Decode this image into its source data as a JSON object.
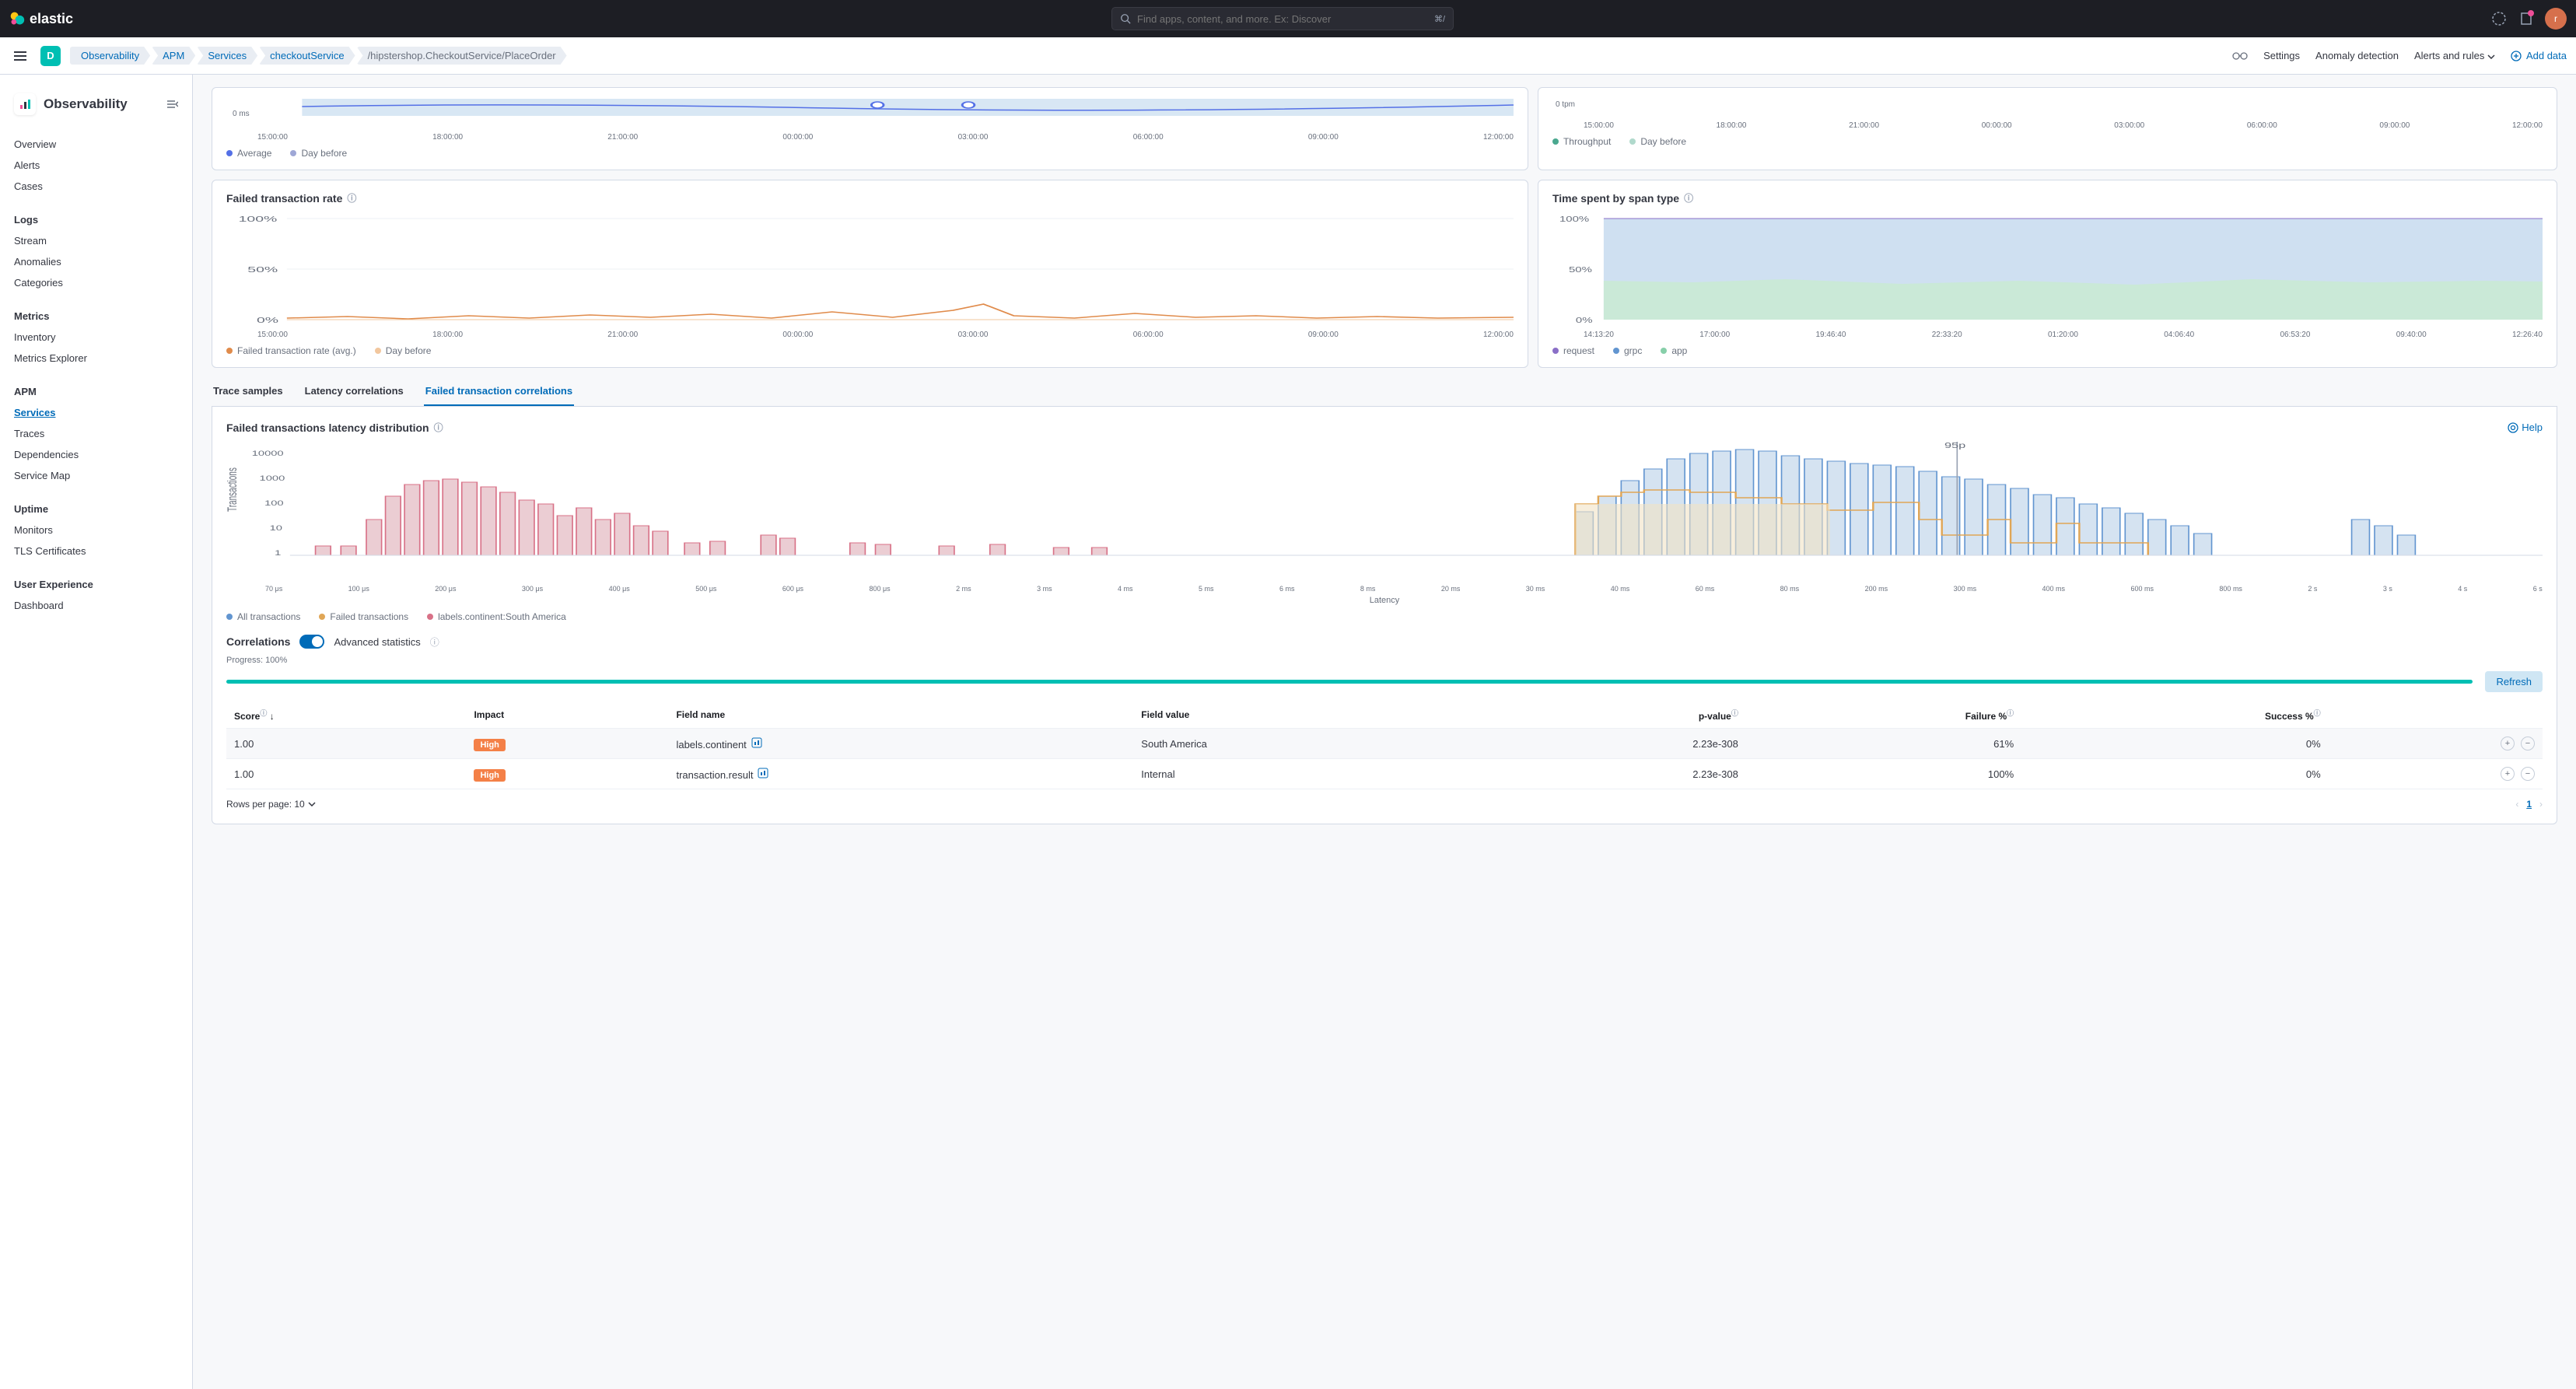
{
  "topbar": {
    "brand": "elastic",
    "search_placeholder": "Find apps, content, and more. Ex: Discover",
    "search_shortcut": "⌘/",
    "avatar_initial": "r"
  },
  "subheader": {
    "space_letter": "D",
    "breadcrumbs": [
      "Observability",
      "APM",
      "Services",
      "checkoutService",
      "/hipstershop.CheckoutService/PlaceOrder"
    ],
    "links": {
      "settings": "Settings",
      "anomaly": "Anomaly detection",
      "alerts": "Alerts and rules",
      "add_data": "Add data"
    }
  },
  "sidebar": {
    "title": "Observability",
    "groups": [
      {
        "title": null,
        "items": [
          "Overview",
          "Alerts",
          "Cases"
        ]
      },
      {
        "title": "Logs",
        "items": [
          "Stream",
          "Anomalies",
          "Categories"
        ]
      },
      {
        "title": "Metrics",
        "items": [
          "Inventory",
          "Metrics Explorer"
        ]
      },
      {
        "title": "APM",
        "items": [
          "Services",
          "Traces",
          "Dependencies",
          "Service Map"
        ],
        "active": "Services"
      },
      {
        "title": "Uptime",
        "items": [
          "Monitors",
          "TLS Certificates"
        ]
      },
      {
        "title": "User Experience",
        "items": [
          "Dashboard"
        ]
      }
    ]
  },
  "top_charts": {
    "left": {
      "y0": "0 ms",
      "xticks": [
        "15:00:00",
        "18:00:00",
        "21:00:00",
        "00:00:00",
        "03:00:00",
        "06:00:00",
        "09:00:00",
        "12:00:00"
      ],
      "legend": [
        {
          "label": "Average",
          "color": "#5470e6"
        },
        {
          "label": "Day before",
          "color": "#9ea7d6"
        }
      ],
      "fill_color": "#d8e7f4"
    },
    "right": {
      "y0": "0 tpm",
      "xticks": [
        "15:00:00",
        "18:00:00",
        "21:00:00",
        "00:00:00",
        "03:00:00",
        "06:00:00",
        "09:00:00",
        "12:00:00"
      ],
      "legend": [
        {
          "label": "Throughput",
          "color": "#4aa88f"
        },
        {
          "label": "Day before",
          "color": "#b0d9cc"
        }
      ]
    }
  },
  "failed_rate": {
    "title": "Failed transaction rate",
    "yticks": [
      "100%",
      "50%",
      "0%"
    ],
    "xticks": [
      "15:00:00",
      "18:00:00",
      "21:00:00",
      "00:00:00",
      "03:00:00",
      "06:00:00",
      "09:00:00",
      "12:00:00"
    ],
    "legend": [
      {
        "label": "Failed transaction rate (avg.)",
        "color": "#e08b4b"
      },
      {
        "label": "Day before",
        "color": "#f2c79e"
      }
    ],
    "line_color": "#e08b4b",
    "grid_color": "#eef0f4"
  },
  "span_type": {
    "title": "Time spent by span type",
    "yticks": [
      "100%",
      "50%",
      "0%"
    ],
    "xticks": [
      "14:13:20",
      "17:00:00",
      "19:46:40",
      "22:33:20",
      "01:20:00",
      "04:06:40",
      "06:53:20",
      "09:40:00",
      "12:26:40"
    ],
    "legend": [
      {
        "label": "request",
        "color": "#8a6fc7"
      },
      {
        "label": "grpc",
        "color": "#6295d0"
      },
      {
        "label": "app",
        "color": "#87cfa9"
      }
    ],
    "colors": {
      "request": "#d6d1ea",
      "grpc": "#cfe0f1",
      "app": "#cae9d7"
    }
  },
  "tabs": [
    "Trace samples",
    "Latency correlations",
    "Failed transaction correlations"
  ],
  "tabs_active": 2,
  "distribution": {
    "title": "Failed transactions latency distribution",
    "help": "Help",
    "ylabel": "Transactions",
    "yticks": [
      "10000",
      "1000",
      "100",
      "10",
      "1"
    ],
    "xlabel": "Latency",
    "xticks": [
      "70 μs",
      "100 μs",
      "200 μs",
      "300 μs",
      "400 μs",
      "500 μs",
      "600 μs",
      "800 μs",
      "2 ms",
      "3 ms",
      "4 ms",
      "5 ms",
      "6 ms",
      "8 ms",
      "20 ms",
      "30 ms",
      "40 ms",
      "60 ms",
      "80 ms",
      "200 ms",
      "300 ms",
      "400 ms",
      "600 ms",
      "800 ms",
      "2 s",
      "3 s",
      "4 s",
      "6 s"
    ],
    "p95_label": "95p",
    "legend": [
      {
        "label": "All transactions",
        "color": "#6295d0"
      },
      {
        "label": "Failed transactions",
        "color": "#e0a656"
      },
      {
        "label": "labels.continent:South America",
        "color": "#d87187"
      }
    ],
    "colors": {
      "all_fill": "#d5e3f1",
      "all_stroke": "#6295d0",
      "failed_fill": "#f2e3c5",
      "failed_stroke": "#e0a656",
      "sa_fill": "#ebcdd3",
      "sa_stroke": "#d87187"
    }
  },
  "correlations": {
    "title": "Correlations",
    "advanced_label": "Advanced statistics",
    "progress_label": "Progress: 100%",
    "refresh": "Refresh",
    "columns": [
      "Score",
      "Impact",
      "Field name",
      "Field value",
      "p-value",
      "Failure %",
      "Success %"
    ],
    "rows": [
      {
        "score": "1.00",
        "impact": "High",
        "field": "labels.continent",
        "value": "South America",
        "p": "2.23e-308",
        "fail": "61%",
        "succ": "0%"
      },
      {
        "score": "1.00",
        "impact": "High",
        "field": "transaction.result",
        "value": "Internal",
        "p": "2.23e-308",
        "fail": "100%",
        "succ": "0%"
      }
    ],
    "rows_per_page": "Rows per page: 10",
    "page": "1"
  }
}
